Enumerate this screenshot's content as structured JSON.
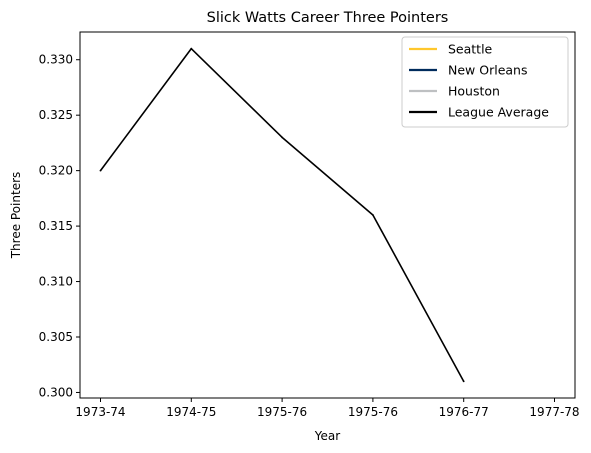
{
  "chart_data": {
    "type": "line",
    "title": "Slick Watts Career Three Pointers",
    "xlabel": "Year",
    "ylabel": "Three Pointers",
    "x_ticks": [
      "1973-74",
      "1974-75",
      "1975-76",
      "1975-76",
      "1976-77",
      "1977-78"
    ],
    "xlim": [
      0,
      5
    ],
    "ylim": [
      0.2995,
      0.3325
    ],
    "y_ticks": [
      0.3,
      0.305,
      0.31,
      0.315,
      0.32,
      0.325,
      0.33
    ],
    "grid": false,
    "legend_position": "top-right",
    "legend": [
      {
        "name": "Seattle",
        "color": "#FFC72C"
      },
      {
        "name": "New Orleans",
        "color": "#002B5C"
      },
      {
        "name": "Houston",
        "color": "#BEC0C2"
      },
      {
        "name": "League Average",
        "color": "#000000"
      }
    ],
    "series": [
      {
        "name": "League Average",
        "color": "#000000",
        "points": [
          {
            "x": 0,
            "y": 0.32
          },
          {
            "x": 1,
            "y": 0.331
          },
          {
            "x": 2,
            "y": 0.323
          },
          {
            "x": 3,
            "y": 0.316
          },
          {
            "x": 4,
            "y": 0.301
          }
        ]
      }
    ]
  }
}
